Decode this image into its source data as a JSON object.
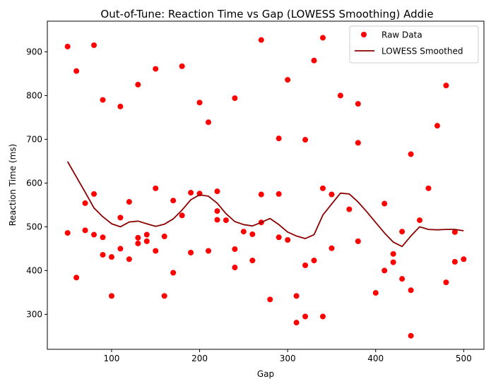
{
  "chart_data": {
    "type": "scatter",
    "title": "Out-of-Tune: Reaction Time vs Gap (LOWESS Smoothing) Addie",
    "xlabel": "Gap",
    "ylabel": "Reaction Time (ms)",
    "xlim": [
      27,
      523
    ],
    "ylim": [
      220,
      970
    ],
    "xticks": [
      100,
      200,
      300,
      400,
      500
    ],
    "yticks": [
      300,
      400,
      500,
      600,
      700,
      800,
      900
    ],
    "grid": false,
    "legend_position": "top-right",
    "colors": {
      "scatter": "#ff0000",
      "line": "#8b0000"
    },
    "series": [
      {
        "name": "Raw Data",
        "kind": "scatter",
        "points": [
          [
            50,
            912
          ],
          [
            50,
            486
          ],
          [
            60,
            856
          ],
          [
            60,
            384
          ],
          [
            70,
            554
          ],
          [
            70,
            492
          ],
          [
            80,
            915
          ],
          [
            80,
            575
          ],
          [
            80,
            482
          ],
          [
            90,
            790
          ],
          [
            90,
            476
          ],
          [
            90,
            436
          ],
          [
            100,
            431
          ],
          [
            100,
            342
          ],
          [
            110,
            775
          ],
          [
            110,
            521
          ],
          [
            110,
            450
          ],
          [
            120,
            557
          ],
          [
            120,
            426
          ],
          [
            130,
            825
          ],
          [
            130,
            475
          ],
          [
            130,
            462
          ],
          [
            140,
            482
          ],
          [
            140,
            467
          ],
          [
            150,
            861
          ],
          [
            150,
            588
          ],
          [
            150,
            445
          ],
          [
            160,
            478
          ],
          [
            160,
            342
          ],
          [
            170,
            560
          ],
          [
            170,
            395
          ],
          [
            180,
            867
          ],
          [
            180,
            526
          ],
          [
            190,
            578
          ],
          [
            190,
            441
          ],
          [
            200,
            784
          ],
          [
            200,
            576
          ],
          [
            210,
            739
          ],
          [
            210,
            445
          ],
          [
            220,
            581
          ],
          [
            220,
            536
          ],
          [
            220,
            516
          ],
          [
            230,
            515
          ],
          [
            240,
            794
          ],
          [
            240,
            449
          ],
          [
            240,
            407
          ],
          [
            250,
            489
          ],
          [
            260,
            483
          ],
          [
            260,
            423
          ],
          [
            270,
            927
          ],
          [
            270,
            574
          ],
          [
            270,
            510
          ],
          [
            280,
            334
          ],
          [
            290,
            702
          ],
          [
            290,
            575
          ],
          [
            290,
            476
          ],
          [
            300,
            836
          ],
          [
            300,
            470
          ],
          [
            310,
            342
          ],
          [
            310,
            281
          ],
          [
            320,
            699
          ],
          [
            320,
            412
          ],
          [
            320,
            295
          ],
          [
            330,
            880
          ],
          [
            330,
            423
          ],
          [
            340,
            932
          ],
          [
            340,
            588
          ],
          [
            340,
            295
          ],
          [
            350,
            574
          ],
          [
            350,
            451
          ],
          [
            360,
            800
          ],
          [
            370,
            540
          ],
          [
            380,
            781
          ],
          [
            380,
            692
          ],
          [
            380,
            467
          ],
          [
            400,
            349
          ],
          [
            410,
            553
          ],
          [
            410,
            400
          ],
          [
            420,
            438
          ],
          [
            420,
            419
          ],
          [
            430,
            489
          ],
          [
            430,
            381
          ],
          [
            440,
            666
          ],
          [
            440,
            355
          ],
          [
            440,
            251
          ],
          [
            450,
            515
          ],
          [
            460,
            588
          ],
          [
            470,
            731
          ],
          [
            480,
            823
          ],
          [
            480,
            373
          ],
          [
            490,
            488
          ],
          [
            490,
            420
          ],
          [
            500,
            426
          ]
        ]
      },
      {
        "name": "LOWESS Smoothed",
        "kind": "line",
        "points": [
          [
            50,
            649
          ],
          [
            60,
            614
          ],
          [
            70,
            579
          ],
          [
            80,
            543
          ],
          [
            90,
            523
          ],
          [
            100,
            507
          ],
          [
            110,
            500
          ],
          [
            120,
            511
          ],
          [
            130,
            513
          ],
          [
            140,
            507
          ],
          [
            150,
            501
          ],
          [
            160,
            506
          ],
          [
            170,
            518
          ],
          [
            180,
            538
          ],
          [
            190,
            562
          ],
          [
            200,
            573
          ],
          [
            210,
            570
          ],
          [
            220,
            554
          ],
          [
            230,
            530
          ],
          [
            240,
            512
          ],
          [
            250,
            505
          ],
          [
            260,
            502
          ],
          [
            270,
            510
          ],
          [
            280,
            519
          ],
          [
            290,
            505
          ],
          [
            300,
            488
          ],
          [
            310,
            479
          ],
          [
            320,
            473
          ],
          [
            330,
            482
          ],
          [
            340,
            527
          ],
          [
            350,
            552
          ],
          [
            360,
            577
          ],
          [
            370,
            575
          ],
          [
            380,
            557
          ],
          [
            390,
            534
          ],
          [
            400,
            510
          ],
          [
            410,
            486
          ],
          [
            420,
            465
          ],
          [
            430,
            455
          ],
          [
            440,
            479
          ],
          [
            450,
            500
          ],
          [
            460,
            494
          ],
          [
            470,
            493
          ],
          [
            480,
            494
          ],
          [
            490,
            494
          ],
          [
            500,
            491
          ]
        ]
      }
    ]
  }
}
